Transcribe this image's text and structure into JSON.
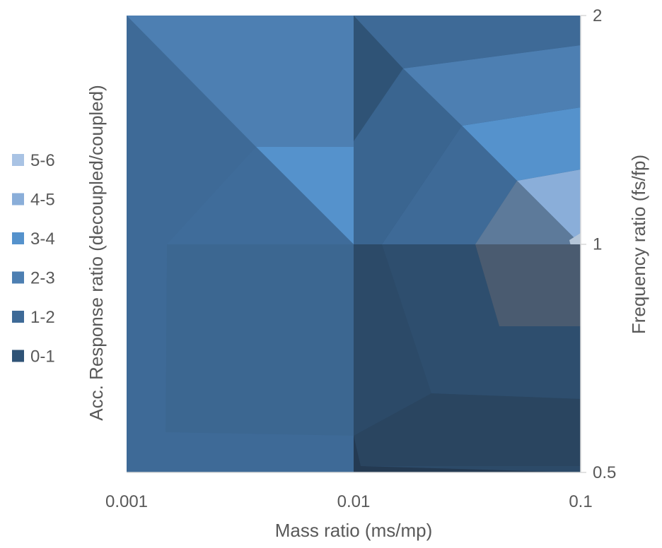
{
  "chart_data": {
    "type": "contour",
    "xlabel": "Mass ratio (ms/mp)",
    "ylabel": "Acc. Response ratio (decoupled/coupled)",
    "y2label": "Frequency ratio (fs/fp)",
    "x_scale": "log",
    "y_scale": "log",
    "x_ticks": [
      {
        "value": 0.001,
        "label": "0.001"
      },
      {
        "value": 0.01,
        "label": "0.01"
      },
      {
        "value": 0.1,
        "label": "0.1"
      }
    ],
    "y_ticks": [
      {
        "value": 0.5,
        "label": "0.5"
      },
      {
        "value": 1,
        "label": "1"
      },
      {
        "value": 2,
        "label": "2"
      }
    ],
    "xlim": [
      0.001,
      0.1
    ],
    "ylim": [
      0.5,
      2
    ],
    "legend_position": "left",
    "legend": [
      {
        "label": "5-6",
        "color": "#a9c3e4"
      },
      {
        "label": "4-5",
        "color": "#8aaed9"
      },
      {
        "label": "3-4",
        "color": "#5592cc"
      },
      {
        "label": "2-3",
        "color": "#4d7fb2"
      },
      {
        "label": "1-2",
        "color": "#3e6a97"
      },
      {
        "label": "0-1",
        "color": "#2f5376"
      }
    ],
    "grid_z": {
      "x": [
        0.001,
        0.01,
        0.1
      ],
      "y": [
        0.5,
        1,
        2
      ],
      "z": [
        [
          1.4,
          1.2,
          0.2
        ],
        [
          1.8,
          3.8,
          5.3
        ],
        [
          1.2,
          2.4,
          2.9
        ]
      ]
    }
  }
}
